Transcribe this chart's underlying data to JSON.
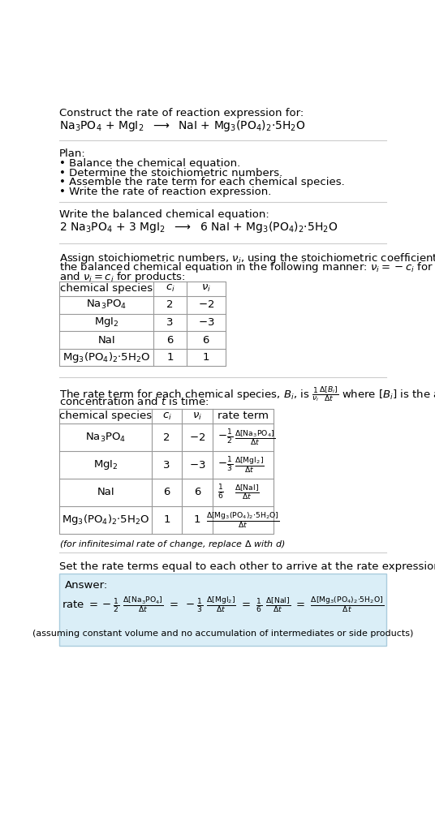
{
  "title_line1": "Construct the rate of reaction expression for:",
  "plan_header": "Plan:",
  "plan_items": [
    "• Balance the chemical equation.",
    "• Determine the stoichiometric numbers.",
    "• Assemble the rate term for each chemical species.",
    "• Write the rate of reaction expression."
  ],
  "balanced_header": "Write the balanced chemical equation:",
  "infinitesimal_note": "(for infinitesimal rate of change, replace Δ with d)",
  "set_equal_text": "Set the rate terms equal to each other to arrive at the rate expression:",
  "answer_label": "Answer:",
  "answer_note": "(assuming constant volume and no accumulation of intermediates or side products)",
  "bg_color": "#ffffff",
  "answer_box_color": "#daeef7",
  "answer_box_border": "#aaccdd",
  "hline_color": "#cccccc",
  "table_color": "#999999",
  "text_color": "#000000",
  "fs_main": 9.5,
  "fs_small": 8.0,
  "fs_chem": 10.0
}
